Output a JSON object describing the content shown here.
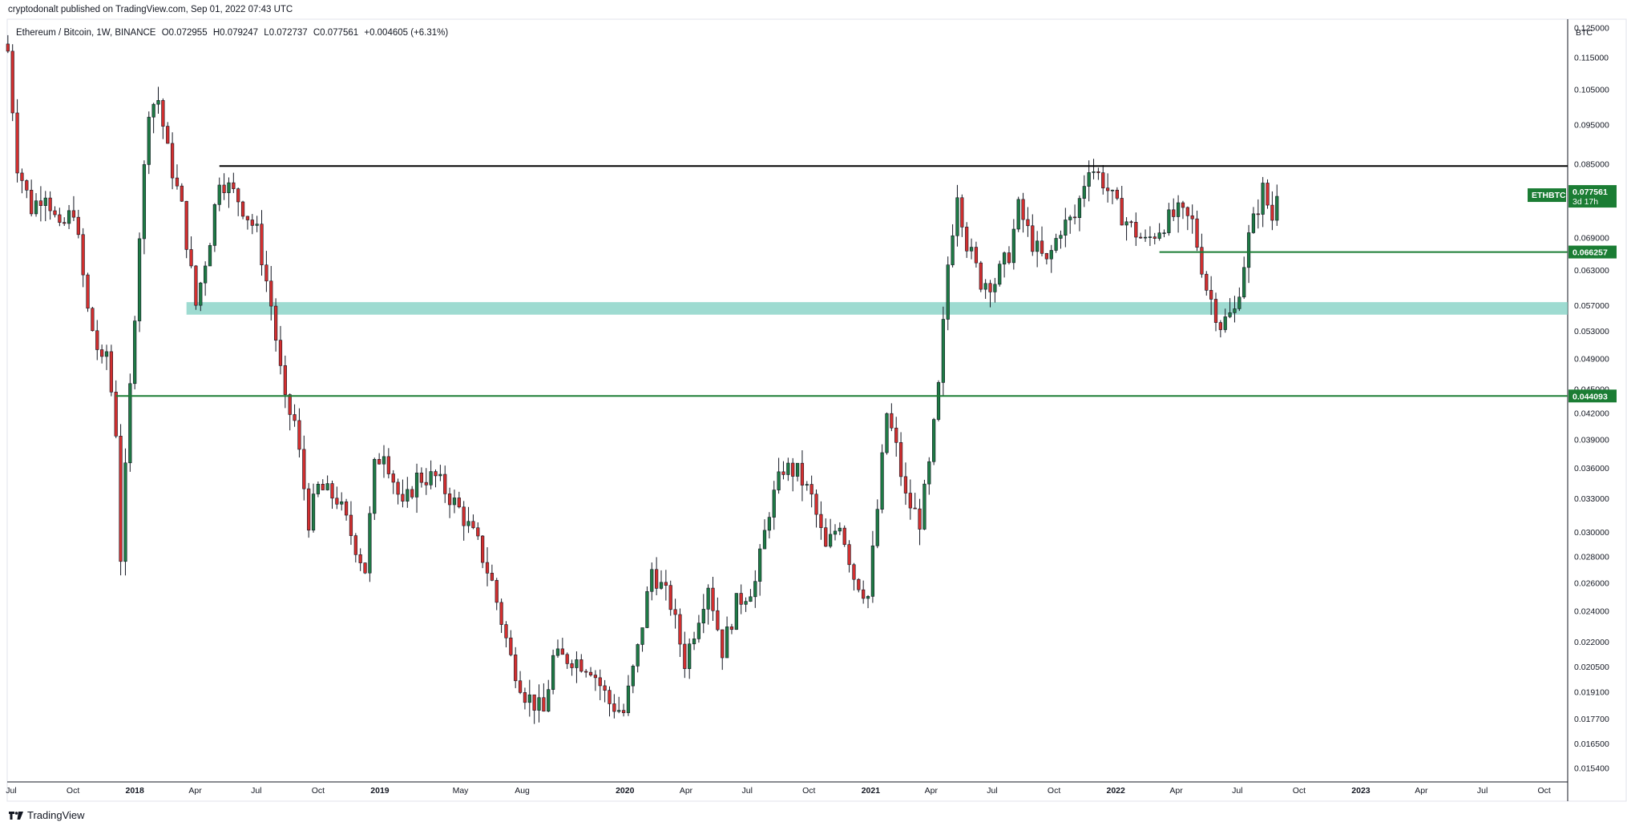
{
  "header": {
    "publisher": "cryptodonalt published on TradingView.com, Sep 01, 2022 07:43 UTC"
  },
  "legend": {
    "symbol": "Ethereum / Bitcoin, 1W, BINANCE",
    "open": "O0.072955",
    "high": "H0.079247",
    "low": "L0.072737",
    "close": "C0.077561",
    "change": "+0.004605 (+6.31%)"
  },
  "price_axis_title": "BTC",
  "labels": {
    "ticker": "ETHBTC",
    "last_price": "0.077561",
    "countdown": "3d 17h",
    "level_upper": "0.066257",
    "level_lower": "0.044093"
  },
  "footer": {
    "brand": "TradingView"
  },
  "colors": {
    "up": "#26a69a",
    "up_fill": "#1e7b45",
    "down": "#ef5350",
    "down_fill": "#d32f2f",
    "green_line": "#1b7d34",
    "zone": "#7dcfc2",
    "black_line": "#000000"
  },
  "chart_data": {
    "type": "candlestick",
    "symbol": "ETHBTC",
    "interval": "1W",
    "scale": "log",
    "ylim": [
      0.0148,
      0.128
    ],
    "y_ticks": [
      "0.125000",
      "0.115000",
      "0.105000",
      "0.095000",
      "0.085000",
      "0.069000",
      "0.063000",
      "0.057000",
      "0.053000",
      "0.049000",
      "0.045000",
      "0.042000",
      "0.039000",
      "0.036000",
      "0.033000",
      "0.030000",
      "0.028000",
      "0.026000",
      "0.024000",
      "0.022000",
      "0.020500",
      "0.019100",
      "0.017700",
      "0.016500",
      "0.015400"
    ],
    "x_ticks": [
      {
        "label": "Jul",
        "date": "2017-07-01",
        "bold": false
      },
      {
        "label": "Oct",
        "date": "2017-10-01",
        "bold": false
      },
      {
        "label": "2018",
        "date": "2018-01-01",
        "bold": true
      },
      {
        "label": "Apr",
        "date": "2018-04-01",
        "bold": false
      },
      {
        "label": "Jul",
        "date": "2018-07-01",
        "bold": false
      },
      {
        "label": "Oct",
        "date": "2018-10-01",
        "bold": false
      },
      {
        "label": "2019",
        "date": "2019-01-01",
        "bold": true
      },
      {
        "label": "May",
        "date": "2019-05-01",
        "bold": false
      },
      {
        "label": "Aug",
        "date": "2019-08-01",
        "bold": false
      },
      {
        "label": "2020",
        "date": "2020-01-01",
        "bold": true
      },
      {
        "label": "Apr",
        "date": "2020-04-01",
        "bold": false
      },
      {
        "label": "Jul",
        "date": "2020-07-01",
        "bold": false
      },
      {
        "label": "Oct",
        "date": "2020-10-01",
        "bold": false
      },
      {
        "label": "2021",
        "date": "2021-01-01",
        "bold": true
      },
      {
        "label": "Apr",
        "date": "2021-04-01",
        "bold": false
      },
      {
        "label": "Jul",
        "date": "2021-07-01",
        "bold": false
      },
      {
        "label": "Oct",
        "date": "2021-10-01",
        "bold": false
      },
      {
        "label": "2022",
        "date": "2022-01-01",
        "bold": true
      },
      {
        "label": "Apr",
        "date": "2022-04-01",
        "bold": false
      },
      {
        "label": "Jul",
        "date": "2022-07-01",
        "bold": false
      },
      {
        "label": "Oct",
        "date": "2022-10-01",
        "bold": false
      },
      {
        "label": "2023",
        "date": "2023-01-01",
        "bold": true
      },
      {
        "label": "Apr",
        "date": "2023-04-01",
        "bold": false
      },
      {
        "label": "Jul",
        "date": "2023-07-01",
        "bold": false
      },
      {
        "label": "Oct",
        "date": "2023-10-01",
        "bold": false
      }
    ],
    "x_range": [
      "2017-06-25",
      "2023-11-05"
    ],
    "annotations": {
      "resistance_line": {
        "price": 0.0845,
        "from": "2018-05-07",
        "to": "2023-11-05"
      },
      "support_line_upper": {
        "price": 0.066257,
        "from": "2022-03-07",
        "to": "2023-11-05"
      },
      "support_line_lower": {
        "price": 0.044093,
        "from": "2017-12-04",
        "to": "2023-11-05"
      },
      "support_zone": {
        "low": 0.0555,
        "high": 0.0575,
        "from": "2018-03-19",
        "to": "2023-11-05"
      }
    },
    "anchors": [
      [
        "2017-06-26",
        0.117
      ],
      [
        "2017-07-10",
        0.085
      ],
      [
        "2017-07-31",
        0.075
      ],
      [
        "2017-08-21",
        0.079
      ],
      [
        "2017-09-11",
        0.07
      ],
      [
        "2017-10-02",
        0.075
      ],
      [
        "2017-10-23",
        0.056
      ],
      [
        "2017-11-13",
        0.048
      ],
      [
        "2017-11-20",
        0.05
      ],
      [
        "2017-12-04",
        0.04
      ],
      [
        "2017-12-11",
        0.028
      ],
      [
        "2017-12-25",
        0.045
      ],
      [
        "2018-01-08",
        0.07
      ],
      [
        "2018-01-22",
        0.1
      ],
      [
        "2018-02-05",
        0.102
      ],
      [
        "2018-02-19",
        0.088
      ],
      [
        "2018-03-12",
        0.075
      ],
      [
        "2018-04-02",
        0.057
      ],
      [
        "2018-04-23",
        0.069
      ],
      [
        "2018-05-07",
        0.082
      ],
      [
        "2018-06-04",
        0.077
      ],
      [
        "2018-07-02",
        0.07
      ],
      [
        "2018-07-23",
        0.057
      ],
      [
        "2018-08-13",
        0.043
      ],
      [
        "2018-08-27",
        0.041
      ],
      [
        "2018-09-17",
        0.031
      ],
      [
        "2018-10-01",
        0.034
      ],
      [
        "2018-10-29",
        0.033
      ],
      [
        "2018-12-10",
        0.027
      ],
      [
        "2018-12-24",
        0.036
      ],
      [
        "2019-01-07",
        0.038
      ],
      [
        "2019-02-04",
        0.032
      ],
      [
        "2019-02-25",
        0.035
      ],
      [
        "2019-03-25",
        0.035
      ],
      [
        "2019-04-29",
        0.032
      ],
      [
        "2019-05-27",
        0.029
      ],
      [
        "2019-06-17",
        0.026
      ],
      [
        "2019-07-15",
        0.021
      ],
      [
        "2019-08-05",
        0.019
      ],
      [
        "2019-09-02",
        0.018
      ],
      [
        "2019-09-16",
        0.021
      ],
      [
        "2019-10-14",
        0.021
      ],
      [
        "2019-11-11",
        0.0205
      ],
      [
        "2019-12-09",
        0.0185
      ],
      [
        "2019-12-30",
        0.018
      ],
      [
        "2020-01-20",
        0.0215
      ],
      [
        "2020-02-10",
        0.027
      ],
      [
        "2020-03-09",
        0.0245
      ],
      [
        "2020-03-30",
        0.0208
      ],
      [
        "2020-05-04",
        0.026
      ],
      [
        "2020-05-25",
        0.0215
      ],
      [
        "2020-06-15",
        0.0245
      ],
      [
        "2020-07-13",
        0.026
      ],
      [
        "2020-08-03",
        0.032
      ],
      [
        "2020-08-24",
        0.036
      ],
      [
        "2020-09-14",
        0.0355
      ],
      [
        "2020-10-05",
        0.033
      ],
      [
        "2020-10-26",
        0.0285
      ],
      [
        "2020-11-16",
        0.031
      ],
      [
        "2020-12-07",
        0.0265
      ],
      [
        "2020-12-28",
        0.025
      ],
      [
        "2021-01-11",
        0.032
      ],
      [
        "2021-01-25",
        0.042
      ],
      [
        "2021-02-08",
        0.038
      ],
      [
        "2021-02-22",
        0.033
      ],
      [
        "2021-03-15",
        0.031
      ],
      [
        "2021-03-29",
        0.036
      ],
      [
        "2021-04-12",
        0.045
      ],
      [
        "2021-04-26",
        0.064
      ],
      [
        "2021-05-10",
        0.079
      ],
      [
        "2021-05-24",
        0.068
      ],
      [
        "2021-06-14",
        0.061
      ],
      [
        "2021-07-05",
        0.061
      ],
      [
        "2021-07-26",
        0.066
      ],
      [
        "2021-08-09",
        0.075
      ],
      [
        "2021-08-30",
        0.068
      ],
      [
        "2021-09-20",
        0.064
      ],
      [
        "2021-10-11",
        0.071
      ],
      [
        "2021-11-01",
        0.073
      ],
      [
        "2021-11-22",
        0.085
      ],
      [
        "2021-12-13",
        0.081
      ],
      [
        "2022-01-03",
        0.075
      ],
      [
        "2022-01-24",
        0.071
      ],
      [
        "2022-02-14",
        0.068
      ],
      [
        "2022-03-14",
        0.072
      ],
      [
        "2022-04-04",
        0.074
      ],
      [
        "2022-04-25",
        0.072
      ],
      [
        "2022-05-16",
        0.06
      ],
      [
        "2022-06-06",
        0.054
      ],
      [
        "2022-06-27",
        0.056
      ],
      [
        "2022-07-18",
        0.069
      ],
      [
        "2022-08-08",
        0.079
      ],
      [
        "2022-08-22",
        0.0728
      ],
      [
        "2022-08-29",
        0.077561
      ]
    ]
  }
}
